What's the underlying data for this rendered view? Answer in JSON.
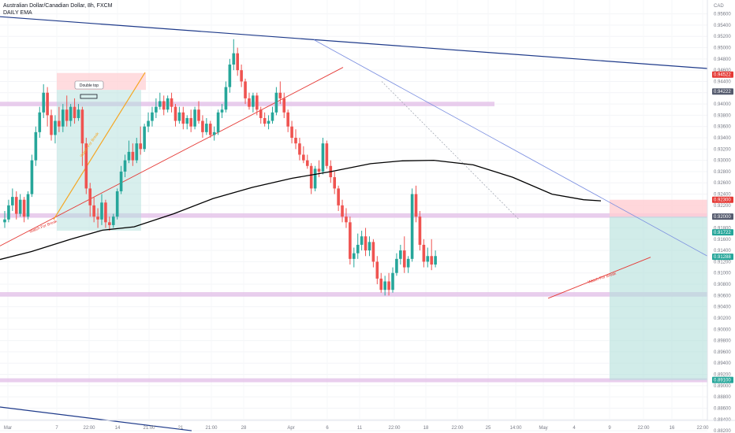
{
  "legend": {
    "symbol": "Australian Dollar/Canadian Dollar, 8h, FXCM",
    "indicator": "DAILY EMA"
  },
  "colors": {
    "up": "#26a69a",
    "down": "#ef5350",
    "ema": "#000000",
    "trendline_major": "#1e3a8a",
    "trendline_minor": "#7b8fe0",
    "support_red": "#e53935",
    "support_orange": "#f5a623",
    "zone": "#e1bee7",
    "target_zone": "#b2dfdb",
    "stop_zone": "#ffcdd2"
  },
  "chart_data": {
    "type": "candlestick",
    "yaxis": {
      "ticks": [
        "0.95600",
        "0.95400",
        "0.95200",
        "0.95000",
        "0.94800",
        "0.94600",
        "0.94400",
        "0.94200",
        "0.94000",
        "0.93800",
        "0.93600",
        "0.93400",
        "0.93200",
        "0.93000",
        "0.92800",
        "0.92600",
        "0.92400",
        "0.92200",
        "0.92000",
        "0.91800",
        "0.91600",
        "0.91400",
        "0.91200",
        "0.91000",
        "0.90800",
        "0.90600",
        "0.90400",
        "0.90200",
        "0.90000",
        "0.89800",
        "0.89600",
        "0.89400",
        "0.89200",
        "0.89000",
        "0.88800",
        "0.88600",
        "0.88400",
        "0.88200"
      ],
      "unit_label": "CAD",
      "range": [
        0.88187,
        0.95804
      ]
    },
    "xaxis": {
      "labels": [
        "Mar",
        "7",
        "22:00",
        "14",
        "21:00",
        "21",
        "21:00",
        "28",
        "Apr",
        "6",
        "11",
        "22:00",
        "18",
        "22:00",
        "25",
        "14:00",
        "May",
        "4",
        "9",
        "22:00",
        "16",
        "22:00"
      ]
    },
    "price_labels": [
      {
        "value": 0.94522,
        "text": "0.94522",
        "color": "#e53935"
      },
      {
        "value": 0.94222,
        "text": "0.94222",
        "color": "#555b6e"
      },
      {
        "value": 0.923,
        "text": "0.92300",
        "color": "#e53935"
      },
      {
        "value": 0.92,
        "text": "0.92000",
        "color": "#555b6e"
      },
      {
        "value": 0.91722,
        "text": "0.91722",
        "color": "#26a69a"
      },
      {
        "value": 0.91288,
        "text": "0.91288",
        "color": "#26a69a"
      },
      {
        "value": 0.891,
        "text": "0.89100",
        "color": "#26a69a"
      }
    ],
    "annotations": [
      {
        "text": "Double top",
        "type": "callout"
      },
      {
        "text": "Watch For Break",
        "type": "line-label"
      },
      {
        "text": "Watch For Break",
        "type": "line-label"
      },
      {
        "text": "Watch For Break",
        "type": "line-label"
      }
    ],
    "zones": [
      {
        "low": 0.9396,
        "high": 0.9404
      },
      {
        "low": 0.9198,
        "high": 0.9206
      },
      {
        "low": 0.9058,
        "high": 0.9066
      },
      {
        "low": 0.8906,
        "high": 0.8913
      }
    ],
    "position": {
      "entry": 0.92,
      "stop": 0.923,
      "target": 0.891
    },
    "candles": [
      [
        0.919,
        0.921,
        0.9195,
        0.918
      ],
      [
        0.9195,
        0.923,
        0.922,
        0.919
      ],
      [
        0.922,
        0.925,
        0.9235,
        0.921
      ],
      [
        0.9235,
        0.9245,
        0.9205,
        0.9195
      ],
      [
        0.9205,
        0.924,
        0.923,
        0.92
      ],
      [
        0.923,
        0.9235,
        0.92,
        0.919
      ],
      [
        0.92,
        0.9245,
        0.924,
        0.9195
      ],
      [
        0.924,
        0.931,
        0.93,
        0.9235
      ],
      [
        0.93,
        0.936,
        0.935,
        0.929
      ],
      [
        0.935,
        0.9395,
        0.9385,
        0.934
      ],
      [
        0.9385,
        0.9435,
        0.942,
        0.9375
      ],
      [
        0.942,
        0.943,
        0.938,
        0.936
      ],
      [
        0.938,
        0.939,
        0.9345,
        0.9335
      ],
      [
        0.9345,
        0.938,
        0.937,
        0.933
      ],
      [
        0.937,
        0.9395,
        0.936,
        0.935
      ],
      [
        0.936,
        0.94,
        0.939,
        0.935
      ],
      [
        0.939,
        0.9415,
        0.937,
        0.936
      ],
      [
        0.937,
        0.94,
        0.9395,
        0.936
      ],
      [
        0.9395,
        0.941,
        0.9375,
        0.9365
      ],
      [
        0.9375,
        0.94,
        0.939,
        0.937
      ],
      [
        0.939,
        0.9395,
        0.933,
        0.929
      ],
      [
        0.933,
        0.934,
        0.925,
        0.924
      ],
      [
        0.925,
        0.926,
        0.922,
        0.92
      ],
      [
        0.922,
        0.9235,
        0.92,
        0.919
      ],
      [
        0.92,
        0.9215,
        0.9195,
        0.918
      ],
      [
        0.9195,
        0.924,
        0.9225,
        0.9185
      ],
      [
        0.9225,
        0.923,
        0.919,
        0.918
      ],
      [
        0.919,
        0.92,
        0.9185,
        0.9175
      ],
      [
        0.9185,
        0.9205,
        0.92,
        0.918
      ],
      [
        0.92,
        0.925,
        0.9245,
        0.9195
      ],
      [
        0.9245,
        0.929,
        0.928,
        0.924
      ],
      [
        0.928,
        0.931,
        0.93,
        0.927
      ],
      [
        0.93,
        0.9335,
        0.9315,
        0.9295
      ],
      [
        0.9315,
        0.933,
        0.93,
        0.929
      ],
      [
        0.93,
        0.934,
        0.933,
        0.9295
      ],
      [
        0.933,
        0.936,
        0.932,
        0.931
      ],
      [
        0.932,
        0.9365,
        0.936,
        0.9315
      ],
      [
        0.936,
        0.9385,
        0.937,
        0.935
      ],
      [
        0.937,
        0.9395,
        0.9385,
        0.936
      ],
      [
        0.9385,
        0.941,
        0.9395,
        0.9375
      ],
      [
        0.9395,
        0.942,
        0.9405,
        0.939
      ],
      [
        0.9405,
        0.9415,
        0.939,
        0.938
      ],
      [
        0.939,
        0.9415,
        0.941,
        0.9385
      ],
      [
        0.941,
        0.942,
        0.9395,
        0.9385
      ],
      [
        0.9395,
        0.94,
        0.937,
        0.936
      ],
      [
        0.937,
        0.9395,
        0.9385,
        0.9365
      ],
      [
        0.9385,
        0.9395,
        0.9365,
        0.9355
      ],
      [
        0.9365,
        0.938,
        0.9375,
        0.9355
      ],
      [
        0.9375,
        0.939,
        0.936,
        0.935
      ],
      [
        0.936,
        0.9395,
        0.939,
        0.9355
      ],
      [
        0.939,
        0.9405,
        0.937,
        0.9365
      ],
      [
        0.937,
        0.938,
        0.935,
        0.934
      ],
      [
        0.935,
        0.9375,
        0.9365,
        0.9345
      ],
      [
        0.9365,
        0.937,
        0.9345,
        0.934
      ],
      [
        0.9345,
        0.936,
        0.935,
        0.9335
      ],
      [
        0.935,
        0.939,
        0.9385,
        0.9345
      ],
      [
        0.9385,
        0.94,
        0.939,
        0.9375
      ],
      [
        0.939,
        0.944,
        0.943,
        0.9385
      ],
      [
        0.943,
        0.948,
        0.947,
        0.942
      ],
      [
        0.947,
        0.9515,
        0.949,
        0.946
      ],
      [
        0.949,
        0.95,
        0.946,
        0.945
      ],
      [
        0.946,
        0.947,
        0.944,
        0.943
      ],
      [
        0.944,
        0.9445,
        0.941,
        0.94
      ],
      [
        0.941,
        0.942,
        0.9395,
        0.939
      ],
      [
        0.9395,
        0.942,
        0.9415,
        0.9385
      ],
      [
        0.9415,
        0.942,
        0.939,
        0.938
      ],
      [
        0.939,
        0.9395,
        0.9375,
        0.9365
      ],
      [
        0.9375,
        0.9385,
        0.9365,
        0.936
      ],
      [
        0.9365,
        0.938,
        0.937,
        0.9355
      ],
      [
        0.937,
        0.9395,
        0.9385,
        0.9365
      ],
      [
        0.9385,
        0.943,
        0.942,
        0.938
      ],
      [
        0.942,
        0.944,
        0.941,
        0.94
      ],
      [
        0.941,
        0.942,
        0.9385,
        0.9375
      ],
      [
        0.9385,
        0.939,
        0.936,
        0.935
      ],
      [
        0.936,
        0.937,
        0.934,
        0.933
      ],
      [
        0.934,
        0.9355,
        0.933,
        0.932
      ],
      [
        0.933,
        0.934,
        0.931,
        0.93
      ],
      [
        0.931,
        0.9325,
        0.93,
        0.9295
      ],
      [
        0.93,
        0.931,
        0.929,
        0.9285
      ],
      [
        0.929,
        0.9295,
        0.925,
        0.924
      ],
      [
        0.925,
        0.929,
        0.9285,
        0.9245
      ],
      [
        0.9285,
        0.93,
        0.928,
        0.927
      ],
      [
        0.928,
        0.934,
        0.933,
        0.9275
      ],
      [
        0.933,
        0.9335,
        0.929,
        0.9285
      ],
      [
        0.929,
        0.93,
        0.927,
        0.926
      ],
      [
        0.927,
        0.928,
        0.925,
        0.924
      ],
      [
        0.925,
        0.9255,
        0.922,
        0.921
      ],
      [
        0.922,
        0.923,
        0.92,
        0.919
      ],
      [
        0.92,
        0.9215,
        0.919,
        0.918
      ],
      [
        0.919,
        0.92,
        0.9125,
        0.9115
      ],
      [
        0.9125,
        0.9145,
        0.9135,
        0.911
      ],
      [
        0.9135,
        0.917,
        0.915,
        0.9125
      ],
      [
        0.915,
        0.9175,
        0.9165,
        0.914
      ],
      [
        0.9165,
        0.918,
        0.914,
        0.913
      ],
      [
        0.914,
        0.9165,
        0.9155,
        0.913
      ],
      [
        0.9155,
        0.916,
        0.912,
        0.911
      ],
      [
        0.912,
        0.913,
        0.909,
        0.908
      ],
      [
        0.909,
        0.91,
        0.907,
        0.9065
      ],
      [
        0.907,
        0.9095,
        0.9085,
        0.906
      ],
      [
        0.9085,
        0.91,
        0.907,
        0.906
      ],
      [
        0.907,
        0.911,
        0.91,
        0.9065
      ],
      [
        0.91,
        0.9135,
        0.9125,
        0.9095
      ],
      [
        0.9125,
        0.915,
        0.914,
        0.9115
      ],
      [
        0.914,
        0.9165,
        0.911,
        0.91
      ],
      [
        0.911,
        0.913,
        0.9125,
        0.91
      ],
      [
        0.9125,
        0.925,
        0.924,
        0.912
      ],
      [
        0.924,
        0.9255,
        0.92,
        0.919
      ],
      [
        0.92,
        0.921,
        0.915,
        0.914
      ],
      [
        0.915,
        0.916,
        0.912,
        0.911
      ],
      [
        0.912,
        0.9145,
        0.913,
        0.911
      ],
      [
        0.913,
        0.916,
        0.9115,
        0.9105
      ],
      [
        0.9115,
        0.914,
        0.913,
        0.911
      ]
    ]
  }
}
